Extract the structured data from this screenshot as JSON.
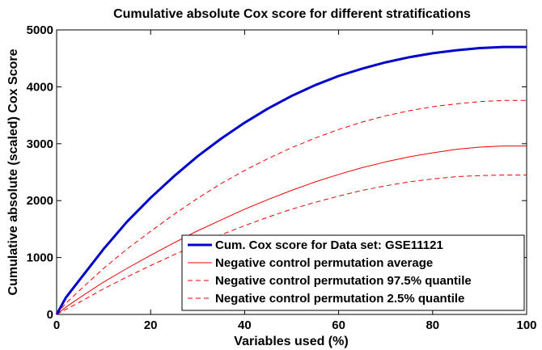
{
  "chart_data": {
    "type": "line",
    "title": "Cumulative absolute Cox score for different stratifications",
    "xlabel": "Variables used (%)",
    "ylabel": "Cumulative absolute (scaled) Cox Score",
    "xlim": [
      0,
      100
    ],
    "ylim": [
      0,
      5000
    ],
    "xticks": [
      0,
      20,
      40,
      60,
      80,
      100
    ],
    "yticks": [
      0,
      1000,
      2000,
      3000,
      4000,
      5000
    ],
    "grid": false,
    "legend_position": "bottom-right",
    "x": [
      0,
      2,
      5,
      10,
      15,
      20,
      25,
      30,
      35,
      40,
      45,
      50,
      55,
      60,
      65,
      70,
      75,
      80,
      85,
      90,
      95,
      100
    ],
    "series": [
      {
        "name": "Cum. Cox score for Data set: GSE11121",
        "color": "#0000cc",
        "style": "solid",
        "width": 3,
        "values": [
          0,
          300,
          620,
          1150,
          1630,
          2050,
          2430,
          2780,
          3090,
          3370,
          3620,
          3840,
          4030,
          4190,
          4320,
          4430,
          4520,
          4590,
          4640,
          4680,
          4700,
          4700
        ]
      },
      {
        "name": "Negative control permutation average",
        "color": "#ee0000",
        "style": "solid",
        "width": 1,
        "values": [
          0,
          130,
          300,
          570,
          810,
          1040,
          1260,
          1470,
          1660,
          1850,
          2020,
          2180,
          2330,
          2460,
          2580,
          2680,
          2770,
          2840,
          2900,
          2940,
          2960,
          2960
        ]
      },
      {
        "name": "Negative control permutation 97.5% quantile",
        "color": "#ee0000",
        "style": "dashed",
        "width": 1,
        "values": [
          0,
          200,
          430,
          810,
          1150,
          1460,
          1760,
          2040,
          2300,
          2530,
          2740,
          2930,
          3100,
          3250,
          3380,
          3490,
          3580,
          3650,
          3700,
          3740,
          3760,
          3760
        ]
      },
      {
        "name": "Negative control permutation 2.5% quantile",
        "color": "#ee0000",
        "style": "dashed",
        "width": 1,
        "values": [
          0,
          90,
          220,
          450,
          660,
          860,
          1050,
          1230,
          1400,
          1560,
          1710,
          1850,
          1970,
          2080,
          2180,
          2260,
          2330,
          2380,
          2420,
          2440,
          2450,
          2450
        ]
      }
    ]
  }
}
